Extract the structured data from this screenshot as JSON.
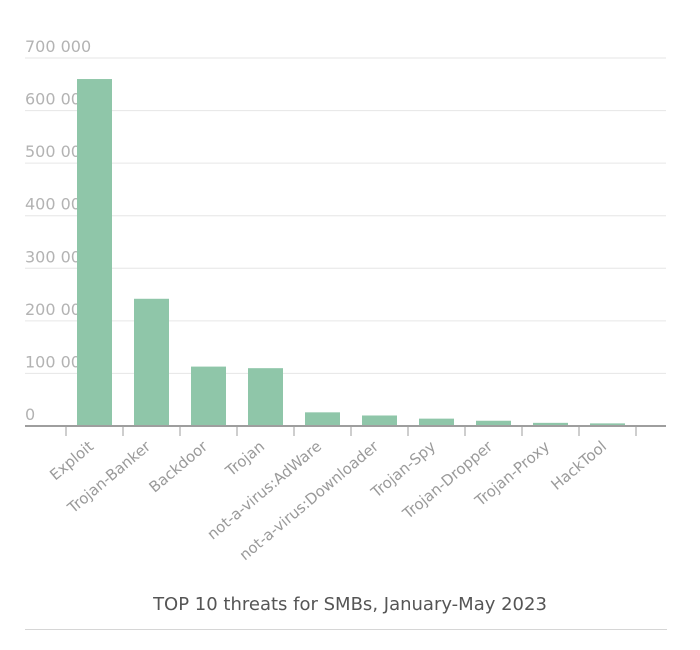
{
  "chart_data": {
    "type": "bar",
    "title": "TOP 10 threats for SMBs, January-May 2023",
    "xlabel": "",
    "ylabel": "",
    "categories": [
      "Exploit",
      "Trojan-Banker",
      "Backdoor",
      "Trojan",
      "not-a-virus:AdWare",
      "not-a-virus:Downloader",
      "Trojan-Spy",
      "Trojan-Dropper",
      "Trojan-Proxy",
      "HackTool"
    ],
    "values": [
      660000,
      242000,
      113000,
      110000,
      26000,
      20000,
      14000,
      10000,
      6000,
      5000
    ],
    "ylim": [
      0,
      700000
    ],
    "yticks": [
      0,
      100000,
      200000,
      300000,
      400000,
      500000,
      600000,
      700000
    ],
    "ytick_labels": [
      "0",
      "100 000",
      "200 000",
      "300 000",
      "400 000",
      "500 000",
      "600 000",
      "700 000"
    ],
    "grid": true,
    "legend": "none",
    "bar_color": "#8fc6a9",
    "grid_color": "#e6e6e6",
    "axis_color": "#9e9e9e"
  }
}
